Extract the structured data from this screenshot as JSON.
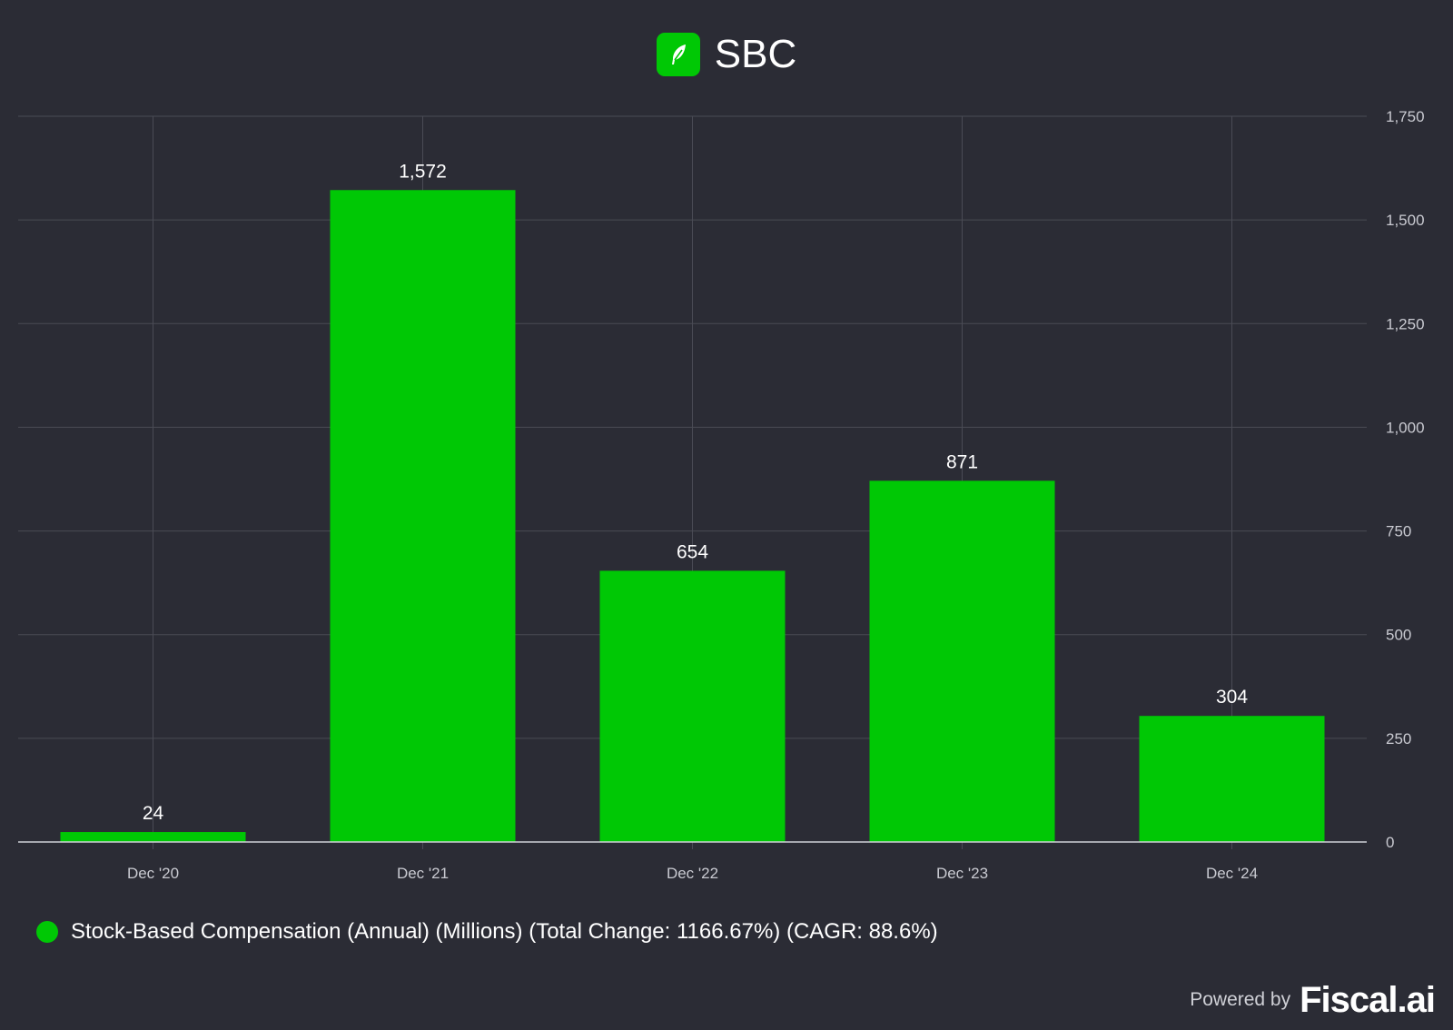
{
  "header": {
    "title": "SBC",
    "logo_icon": "feather-icon"
  },
  "colors": {
    "background": "#2b2c35",
    "bar": "#00c805",
    "grid": "#4a4b55",
    "axis_text": "#c9cad1",
    "text": "#ffffff"
  },
  "chart_data": {
    "type": "bar",
    "categories": [
      "Dec '20",
      "Dec '21",
      "Dec '22",
      "Dec '23",
      "Dec '24"
    ],
    "series": [
      {
        "name": "Stock-Based Compensation (Annual) (Millions) (Total Change: 1166.67%) (CAGR: 88.6%)",
        "values": [
          24,
          1572,
          654,
          871,
          304
        ]
      }
    ],
    "data_labels": [
      "24",
      "1,572",
      "654",
      "871",
      "304"
    ],
    "y_ticks": [
      0,
      250,
      500,
      750,
      1000,
      1250,
      1500,
      1750
    ],
    "y_tick_labels": [
      "0",
      "250",
      "500",
      "750",
      "1,000",
      "1,250",
      "1,500",
      "1,750"
    ],
    "ylim": [
      0,
      1750
    ],
    "y_axis_side": "right",
    "grid": true,
    "legend_position": "bottom-left"
  },
  "legend": {
    "label": "Stock-Based Compensation (Annual) (Millions) (Total Change: 1166.67%) (CAGR: 88.6%)"
  },
  "footer": {
    "powered_by": "Powered by",
    "brand": "Fiscal.ai"
  }
}
